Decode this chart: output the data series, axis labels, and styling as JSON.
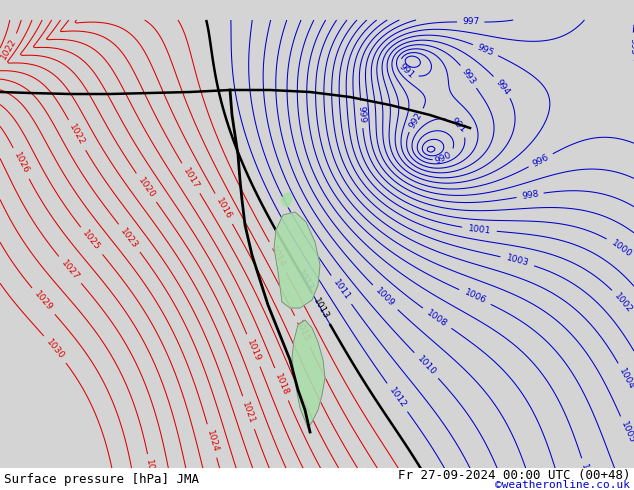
{
  "title_left": "Surface pressure [hPa] JMA",
  "title_right": "Fr 27-09-2024 00:00 UTC (00+48)",
  "copyright": "©weatheronline.co.uk",
  "bg_color": "#d4d4d4",
  "red_color": "#dd0000",
  "blue_color": "#0000cc",
  "black_color": "#000000",
  "green_fill": "#aaddaa",
  "green_fill2": "#88cc88",
  "label_fontsize": 6.5,
  "footer_fontsize": 9,
  "copyright_fontsize": 8,
  "copyright_color": "#0000cc",
  "footer_bg": "#ffffff"
}
